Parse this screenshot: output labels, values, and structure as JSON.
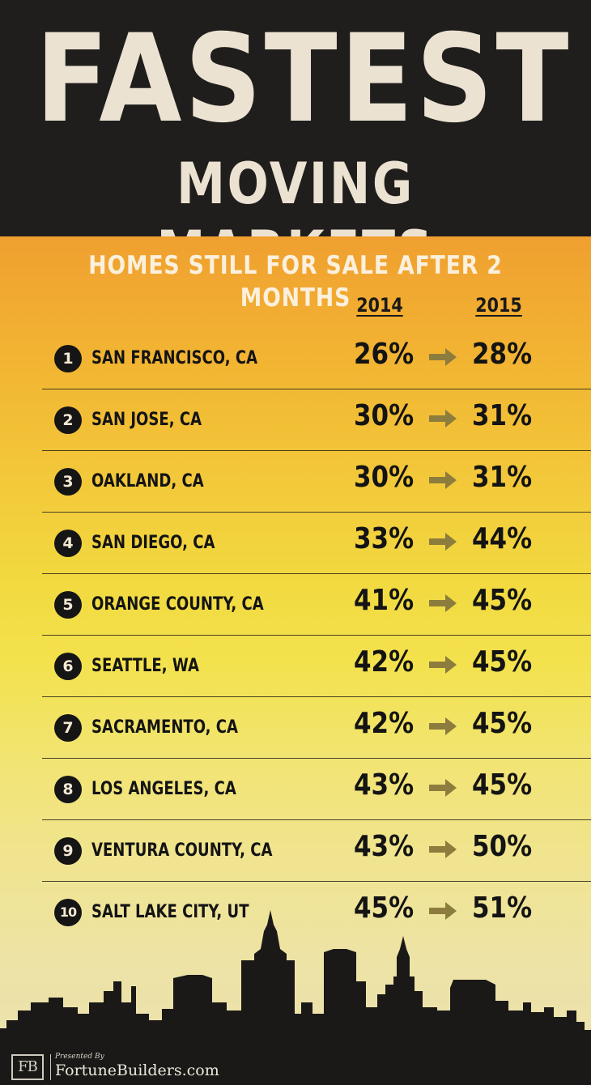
{
  "header": {
    "title": "FASTEST",
    "subtitle": "MOVING MARKETS"
  },
  "table": {
    "heading": "HOMES STILL FOR SALE AFTER 2 MONTHS",
    "year_a": "2014",
    "year_b": "2015",
    "rows": [
      {
        "rank": "1",
        "city": "SAN FRANCISCO, CA",
        "v2014": "26%",
        "v2015": "28%"
      },
      {
        "rank": "2",
        "city": "SAN JOSE, CA",
        "v2014": "30%",
        "v2015": "31%"
      },
      {
        "rank": "3",
        "city": "OAKLAND, CA",
        "v2014": "30%",
        "v2015": "31%"
      },
      {
        "rank": "4",
        "city": "SAN DIEGO, CA",
        "v2014": "33%",
        "v2015": "44%"
      },
      {
        "rank": "5",
        "city": "ORANGE COUNTY, CA",
        "v2014": "41%",
        "v2015": "45%"
      },
      {
        "rank": "6",
        "city": "SEATTLE, WA",
        "v2014": "42%",
        "v2015": "45%"
      },
      {
        "rank": "7",
        "city": "SACRAMENTO, CA",
        "v2014": "42%",
        "v2015": "45%"
      },
      {
        "rank": "8",
        "city": "LOS ANGELES, CA",
        "v2014": "43%",
        "v2015": "45%"
      },
      {
        "rank": "9",
        "city": "VENTURA COUNTY, CA",
        "v2014": "43%",
        "v2015": "50%"
      },
      {
        "rank": "10",
        "city": "SALT LAKE CITY, UT",
        "v2014": "45%",
        "v2015": "51%"
      }
    ]
  },
  "footer": {
    "logo": "FB",
    "presented_by": "Presented By",
    "brand": "FortuneBuilders.com"
  },
  "colors": {
    "header_bg": "#1f1e1c",
    "title_text": "#ece2d2",
    "arrow": "#8c7d3e",
    "rank_badge": "#151515"
  }
}
